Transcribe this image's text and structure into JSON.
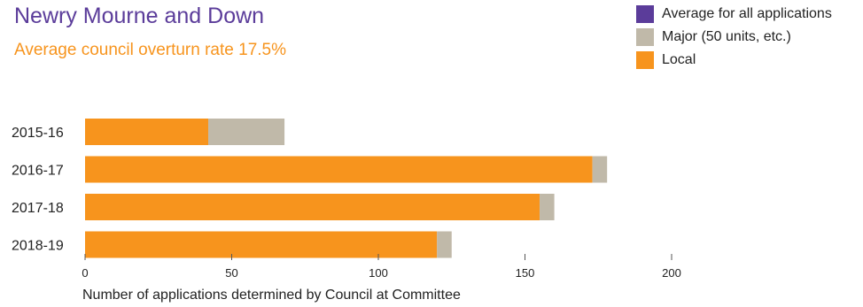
{
  "colors": {
    "local": "#f7941d",
    "major": "#c0b9a9",
    "average": "#5b3c9a",
    "title": "#5b3c9a",
    "subtitle": "#f7941d"
  },
  "chart_data": {
    "type": "bar",
    "orientation": "horizontal",
    "stacked": true,
    "title": "Newry Mourne and Down",
    "subtitle": "Average council overturn rate 17.5%",
    "xlabel": "Number of applications determined by Council at Committee",
    "ylabel": "",
    "xlim": [
      0,
      200
    ],
    "xticks": [
      0,
      50,
      100,
      150,
      200
    ],
    "categories": [
      "2015-16",
      "2016-17",
      "2017-18",
      "2018-19"
    ],
    "series": [
      {
        "name": "Local",
        "color": "#f7941d",
        "values": [
          42,
          173,
          155,
          120
        ]
      },
      {
        "name": "Major (50 units, etc.)",
        "color": "#c0b9a9",
        "values": [
          26,
          5,
          5,
          5
        ]
      }
    ],
    "legend": {
      "position": "top-right",
      "entries": [
        {
          "label": "Average for all applications",
          "color": "#5b3c9a"
        },
        {
          "label": "Major (50 units, etc.)",
          "color": "#c0b9a9"
        },
        {
          "label": "Local",
          "color": "#f7941d"
        }
      ]
    },
    "grid": false
  }
}
